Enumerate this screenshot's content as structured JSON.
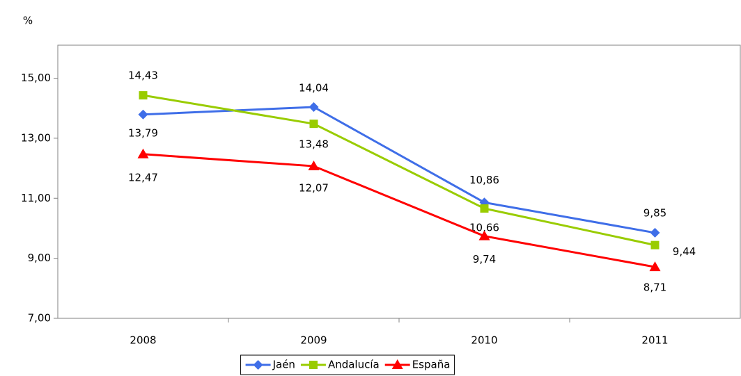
{
  "chart_data": {
    "type": "line",
    "y_label": "%",
    "categories": [
      "2008",
      "2009",
      "2010",
      "2011"
    ],
    "series": [
      {
        "name": "Jaén",
        "color": "#3f6ee8",
        "marker": "diamond",
        "values": [
          13.79,
          14.04,
          10.86,
          9.85
        ],
        "value_labels": [
          "13,79",
          "14,04",
          "10,86",
          "9,85"
        ]
      },
      {
        "name": "Andalucía",
        "color": "#99cc00",
        "marker": "square",
        "values": [
          14.43,
          13.48,
          10.66,
          9.44
        ],
        "value_labels": [
          "14,43",
          "13,48",
          "10,66",
          "9,44"
        ]
      },
      {
        "name": "España",
        "color": "#ff0000",
        "marker": "triangle",
        "values": [
          12.47,
          12.07,
          9.74,
          8.71
        ],
        "value_labels": [
          "12,47",
          "12,07",
          "9,74",
          "8,71"
        ]
      }
    ],
    "ylim": [
      7,
      16.1
    ],
    "yticks": [
      {
        "value": 7,
        "label": "7,00"
      },
      {
        "value": 9,
        "label": "9,00"
      },
      {
        "value": 11,
        "label": "11,00"
      },
      {
        "value": 13,
        "label": "13,00"
      },
      {
        "value": 15,
        "label": "15,00"
      }
    ],
    "legend": "bottom"
  }
}
